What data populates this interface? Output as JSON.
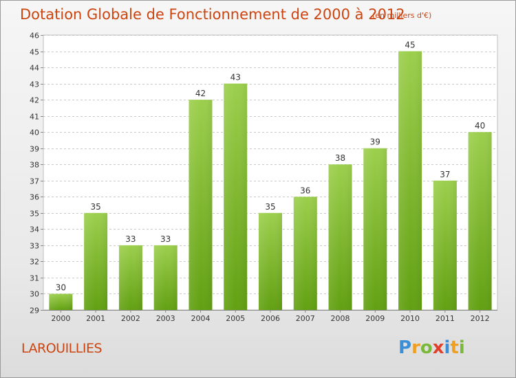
{
  "chart_data": {
    "type": "bar",
    "title": "Dotation Globale de Fonctionnement de 2000 à 2012",
    "unit_note": "(en milliers d'€)",
    "categories": [
      "2000",
      "2001",
      "2002",
      "2003",
      "2004",
      "2005",
      "2006",
      "2007",
      "2008",
      "2009",
      "2010",
      "2011",
      "2012"
    ],
    "values": [
      30,
      35,
      33,
      33,
      42,
      43,
      35,
      36,
      38,
      39,
      45,
      37,
      40
    ],
    "ylim": [
      29,
      46
    ],
    "yticks": [
      29,
      30,
      31,
      32,
      33,
      34,
      35,
      36,
      37,
      38,
      39,
      40,
      41,
      42,
      43,
      44,
      45,
      46
    ],
    "grid": true,
    "legend": "none",
    "bar_color_top": "#9ccf4d",
    "bar_color_bottom": "#62a012"
  },
  "footer": {
    "commune": "LAROUILLIES",
    "brand_letters": [
      "P",
      "r",
      "o",
      "x",
      "i",
      "t",
      "i"
    ],
    "brand_colors": [
      "#3a8fd6",
      "#f0a020",
      "#7ab83a",
      "#e0402a",
      "#3a8fd6",
      "#f0a020",
      "#7ab83a"
    ]
  },
  "colors": {
    "accent": "#cc4410",
    "grid": "#c8c8c8"
  }
}
